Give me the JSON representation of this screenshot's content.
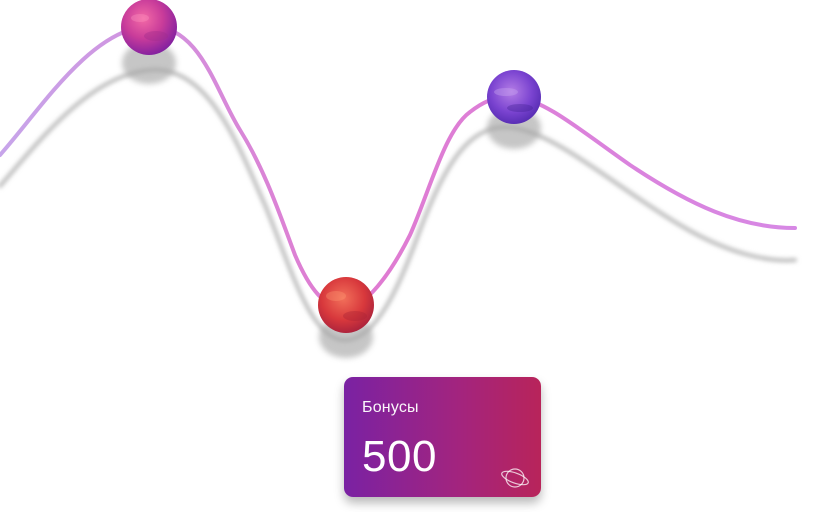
{
  "bonus_card": {
    "label": "Бонусы",
    "value": "500",
    "icon": "planet-icon"
  },
  "planets": [
    {
      "name": "magenta-planet",
      "icon": "planet-magenta-icon"
    },
    {
      "name": "red-planet",
      "icon": "planet-red-icon"
    },
    {
      "name": "violet-planet",
      "icon": "planet-violet-icon"
    }
  ],
  "colors": {
    "curve_start": "#c7a5ea",
    "curve_mid": "#e07ad0",
    "curve_end": "#d689e6",
    "shadow": "#bfbfbf",
    "card_gradient_start": "#7a22a3",
    "card_gradient_end": "#b8245a"
  }
}
